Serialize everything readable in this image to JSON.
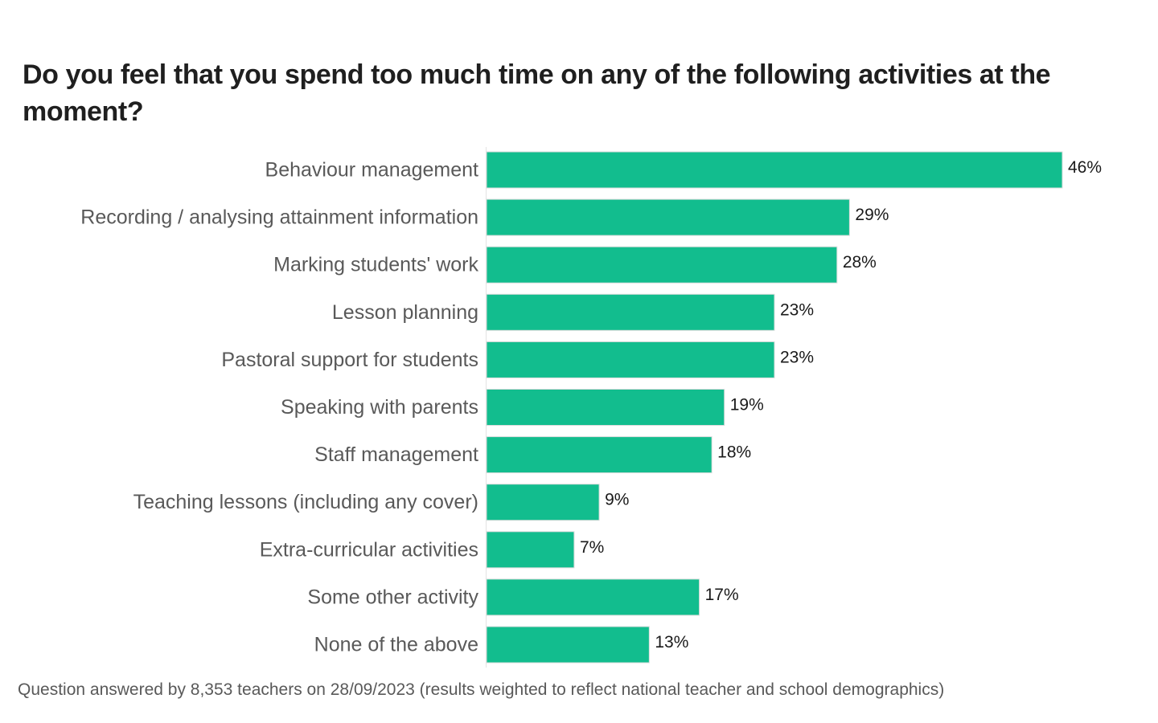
{
  "chart_data": {
    "type": "bar",
    "orientation": "horizontal",
    "title": "Do you feel that you spend too much time on any of the following activities at the moment?",
    "categories": [
      "Behaviour management",
      "Recording / analysing attainment information",
      "Marking students' work",
      "Lesson planning",
      "Pastoral support for students",
      "Speaking with parents",
      "Staff management",
      "Teaching lessons (including any cover)",
      "Extra-curricular activities",
      "Some other activity",
      "None of the above"
    ],
    "values": [
      46,
      29,
      28,
      23,
      23,
      19,
      18,
      9,
      7,
      17,
      13
    ],
    "value_labels": [
      "46%",
      "29%",
      "28%",
      "23%",
      "23%",
      "19%",
      "18%",
      "9%",
      "7%",
      "17%",
      "13%"
    ],
    "unit": "%",
    "xlim": [
      0,
      46
    ],
    "bar_color": "#12bd8e",
    "gridlines": false,
    "legend": "none",
    "footnote": "Question answered by 8,353 teachers on 28/09/2023 (results weighted to reflect national teacher and school demographics)"
  }
}
